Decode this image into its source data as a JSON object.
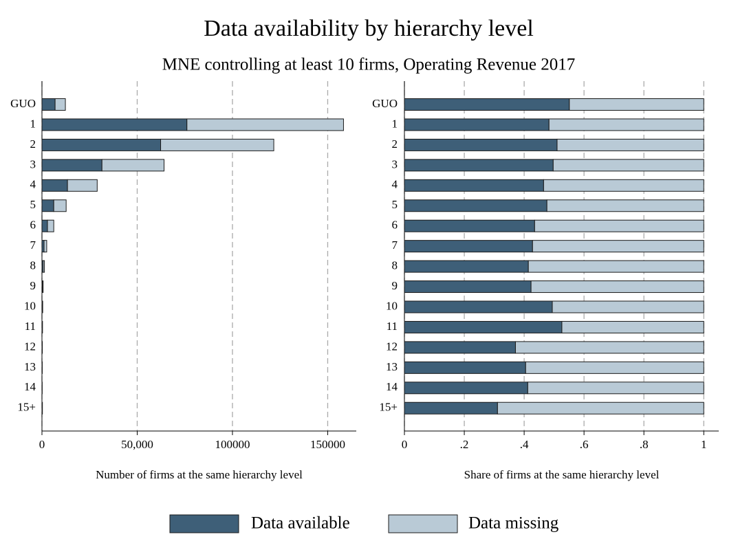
{
  "chart_data": [
    {
      "type": "stacked-barh",
      "title": "Data availability by hierarchy level",
      "subtitle": "MNE controlling at least 10 firms, Operating Revenue 2017",
      "x_label": "Number of firms at the same hierarchy level",
      "categories": [
        "GUO",
        "1",
        "2",
        "3",
        "4",
        "5",
        "6",
        "7",
        "8",
        "9",
        "10",
        "11",
        "12",
        "13",
        "14",
        "15+"
      ],
      "series": [
        {
          "name": "Data available",
          "color": "#3e5f78",
          "values": [
            6900,
            76100,
            62300,
            31500,
            13400,
            6200,
            2900,
            1100,
            600,
            300,
            200,
            150,
            100,
            80,
            60,
            100
          ]
        },
        {
          "name": "Data missing",
          "color": "#b9cad6",
          "values": [
            5400,
            82200,
            59400,
            32600,
            15600,
            6500,
            3300,
            1400,
            700,
            300,
            200,
            150,
            120,
            100,
            80,
            150
          ]
        }
      ],
      "xlim": [
        0,
        165000
      ],
      "xticks": [
        0,
        {
          "value": 50000,
          "label": "50,000"
        },
        100000,
        150000
      ],
      "grid": true
    },
    {
      "type": "stacked-barh",
      "x_label": "Share of firms at the same hierarchy level",
      "categories": [
        "GUO",
        "1",
        "2",
        "3",
        "4",
        "5",
        "6",
        "7",
        "8",
        "9",
        "10",
        "11",
        "12",
        "13",
        "14",
        "15+"
      ],
      "series": [
        {
          "color": "#3e5f78",
          "values": [
            0.551,
            0.483,
            0.51,
            0.497,
            0.465,
            0.476,
            0.435,
            0.428,
            0.414,
            0.423,
            0.494,
            0.526,
            0.371,
            0.405,
            0.412,
            0.311
          ]
        },
        {
          "color": "#b9cad6",
          "values": [
            0.449,
            0.517,
            0.49,
            0.503,
            0.535,
            0.524,
            0.565,
            0.572,
            0.586,
            0.577,
            0.506,
            0.474,
            0.629,
            0.595,
            0.588,
            0.689
          ]
        }
      ],
      "xlim": [
        0,
        1.05
      ],
      "xticks": [
        0,
        {
          "value": 0.2,
          "label": ".2"
        },
        {
          "value": 0.4,
          "label": ".4"
        },
        {
          "value": 0.6,
          "label": ".6"
        },
        {
          "value": 0.8,
          "label": ".8"
        },
        1
      ],
      "grid": true
    }
  ]
}
